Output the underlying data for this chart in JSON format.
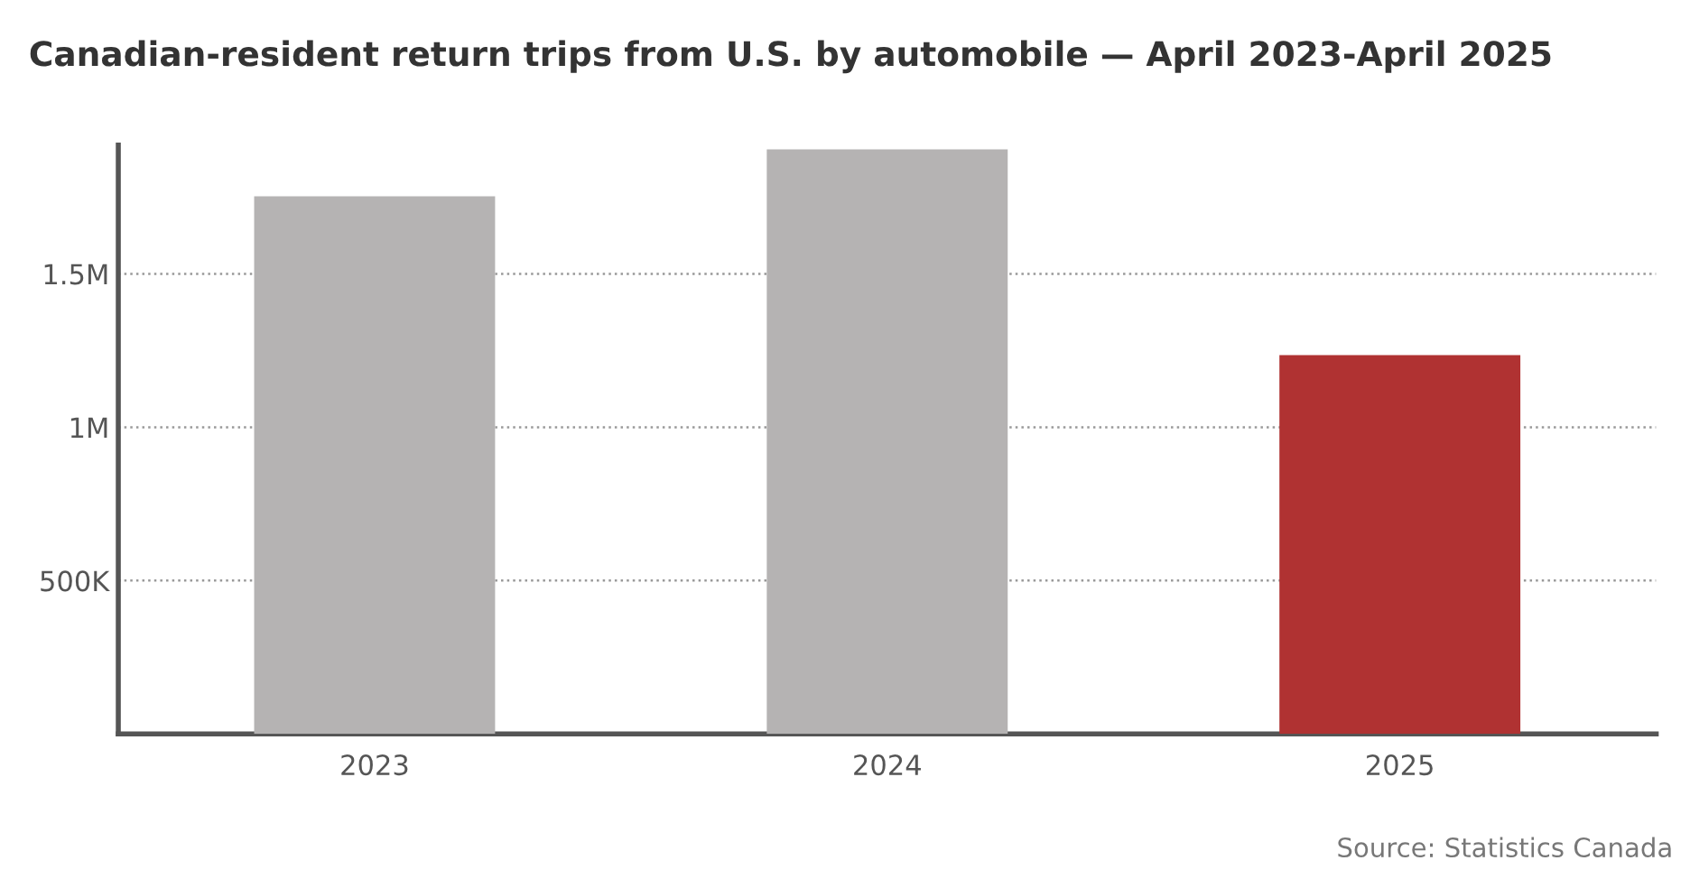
{
  "chart_data": {
    "type": "bar",
    "title": "Canadian-resident return trips from U.S. by automobile — April 2023-April 2025",
    "categories": [
      "2023",
      "2024",
      "2025"
    ],
    "values": [
      1753000,
      1906000,
      1235000
    ],
    "colors": [
      "#b5b3b3",
      "#b5b3b3",
      "#b03232"
    ],
    "ylim": [
      0,
      1920000
    ],
    "yticks": [
      {
        "value": 500000,
        "label": "500K"
      },
      {
        "value": 1000000,
        "label": "1M"
      },
      {
        "value": 1500000,
        "label": "1.5M"
      }
    ],
    "grid": "y",
    "annotations": [
      "Source: Statistics Canada"
    ]
  }
}
